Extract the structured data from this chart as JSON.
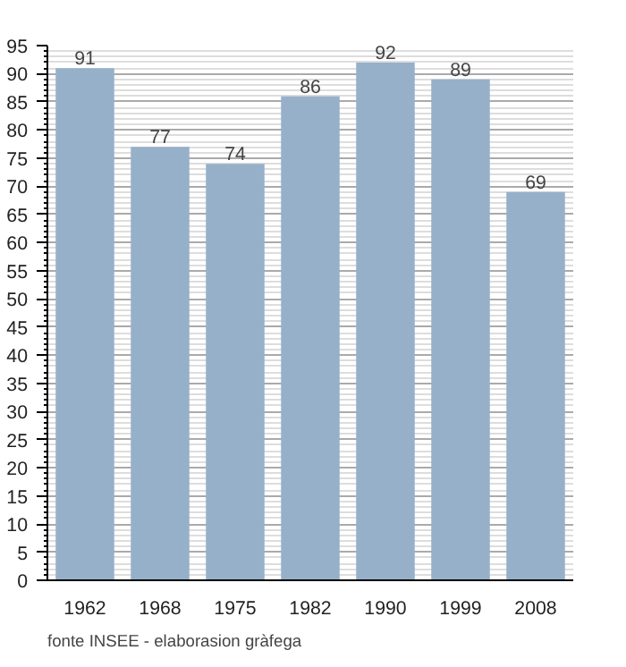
{
  "chart_data": {
    "type": "bar",
    "categories": [
      "1962",
      "1968",
      "1975",
      "1982",
      "1990",
      "1999",
      "2008"
    ],
    "values": [
      91,
      77,
      74,
      86,
      92,
      89,
      69
    ],
    "color": "#97b0ca",
    "data_labels": true,
    "ylim": [
      0,
      95
    ],
    "yticks": [
      0,
      5,
      10,
      15,
      20,
      25,
      30,
      35,
      40,
      45,
      50,
      55,
      60,
      65,
      70,
      75,
      80,
      85,
      90,
      95
    ],
    "grid": "y",
    "annotations": [
      "fonte INSEE - elaborasion gràfega"
    ]
  }
}
